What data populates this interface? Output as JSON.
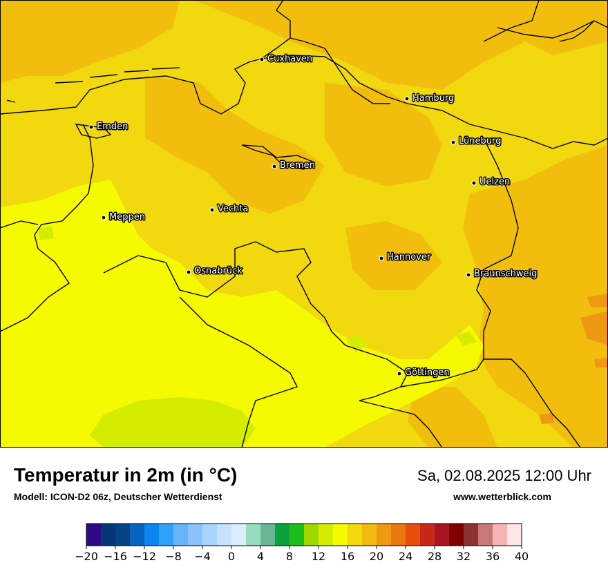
{
  "map": {
    "cities": [
      {
        "name": "Cuxhaven"
      },
      {
        "name": "Hamburg"
      },
      {
        "name": "Emden"
      },
      {
        "name": "Lüneburg"
      },
      {
        "name": "Bremen"
      },
      {
        "name": "Uelzen"
      },
      {
        "name": "Vechta"
      },
      {
        "name": "Meppen"
      },
      {
        "name": "Hannover"
      },
      {
        "name": "Osnabrück"
      },
      {
        "name": "Braunschweig"
      },
      {
        "name": "Göttingen"
      }
    ]
  },
  "footer": {
    "title": "Temperatur in 2m (in °C)",
    "model": "Modell: ICON-D2 06z, Deutscher Wetterdienst",
    "datetime": "Sa, 02.08.2025 12:00 Uhr",
    "url": "www.wetterblick.com"
  },
  "legend": {
    "ticks": [
      "−20",
      "−16",
      "−12",
      "−8",
      "−4",
      "0",
      "4",
      "8",
      "12",
      "16",
      "20",
      "24",
      "28",
      "32",
      "36",
      "40"
    ],
    "colors": [
      "#2e0a85",
      "#07357a",
      "#064583",
      "#0a62c0",
      "#0b86f0",
      "#2fa1fa",
      "#68b4fb",
      "#8ac3fb",
      "#a9d5fd",
      "#c7e2fe",
      "#dcedfe",
      "#98dcc0",
      "#6bb594",
      "#0aa23a",
      "#1cbe1c",
      "#9ed600",
      "#d4ec00",
      "#f5fa00",
      "#f2d80e",
      "#f2b90e",
      "#ef9812",
      "#ec7712",
      "#e64f0e",
      "#c6281a",
      "#a81420",
      "#800000",
      "#8d3232",
      "#c87878",
      "#f6b3b3",
      "#ffe6e6"
    ]
  }
}
